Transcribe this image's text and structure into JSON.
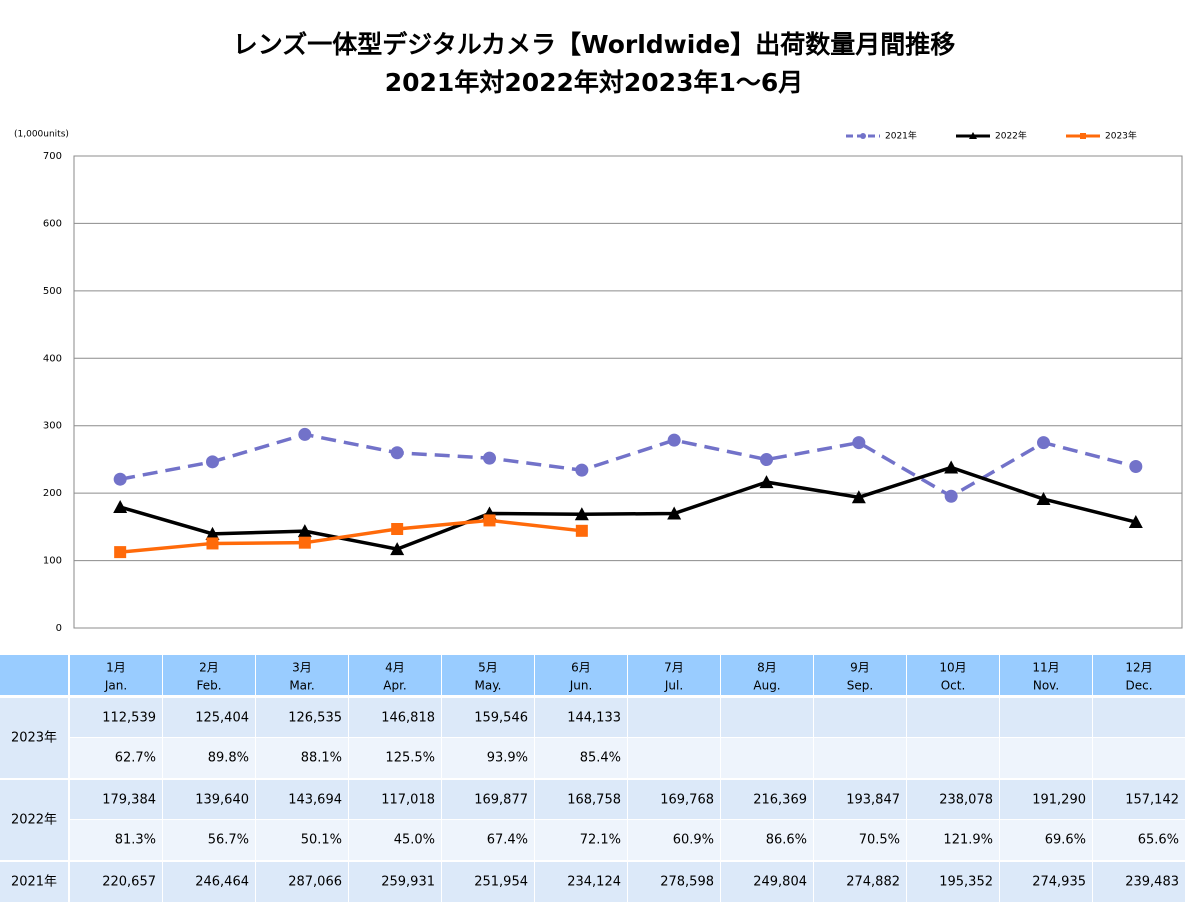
{
  "chart_data": {
    "type": "line",
    "title": [
      "レンズ一体型デジタルカメラ【Worldwide】出荷数量月間推移",
      "2021年対2022年対2023年1～6月"
    ],
    "y_unit": "(1,000units)",
    "ylim": [
      0,
      700
    ],
    "yticks": [
      0,
      100,
      200,
      300,
      400,
      500,
      600,
      700
    ],
    "grid": true,
    "legend": "top-right",
    "series": [
      {
        "name": "2021年",
        "color": "#7272c9",
        "dashed": true,
        "marker": "circle",
        "values": [
          220.657,
          246.464,
          287.066,
          259.931,
          251.954,
          234.124,
          278.598,
          249.804,
          274.882,
          195.352,
          274.935,
          239.483
        ]
      },
      {
        "name": "2022年",
        "color": "#000000",
        "dashed": false,
        "marker": "triangle",
        "values": [
          179.384,
          139.64,
          143.694,
          117.018,
          169.877,
          168.758,
          169.768,
          216.369,
          193.847,
          238.078,
          191.29,
          157.142
        ]
      },
      {
        "name": "2023年",
        "color": "#ff6a0a",
        "dashed": false,
        "marker": "square",
        "values": [
          112.539,
          125.404,
          126.535,
          146.818,
          159.546,
          144.133,
          null,
          null,
          null,
          null,
          null,
          null
        ]
      }
    ]
  },
  "table": {
    "months": [
      [
        "1月",
        "Jan."
      ],
      [
        "2月",
        "Feb."
      ],
      [
        "3月",
        "Mar."
      ],
      [
        "4月",
        "Apr."
      ],
      [
        "5月",
        "May."
      ],
      [
        "6月",
        "Jun."
      ],
      [
        "7月",
        "Jul."
      ],
      [
        "8月",
        "Aug."
      ],
      [
        "9月",
        "Sep."
      ],
      [
        "10月",
        "Oct."
      ],
      [
        "11月",
        "Nov."
      ],
      [
        "12月",
        "Dec."
      ]
    ],
    "rows": [
      {
        "label": "2023年",
        "values": [
          "112,539",
          "125,404",
          "126,535",
          "146,818",
          "159,546",
          "144,133"
        ],
        "ratios": [
          "62.7%",
          "89.8%",
          "88.1%",
          "125.5%",
          "93.9%",
          "85.4%"
        ]
      },
      {
        "label": "2022年",
        "values": [
          "179,384",
          "139,640",
          "143,694",
          "117,018",
          "169,877",
          "168,758",
          "169,768",
          "216,369",
          "193,847",
          "238,078",
          "191,290",
          "157,142"
        ],
        "ratios": [
          "81.3%",
          "56.7%",
          "50.1%",
          "45.0%",
          "67.4%",
          "72.1%",
          "60.9%",
          "86.6%",
          "70.5%",
          "121.9%",
          "69.6%",
          "65.6%"
        ]
      },
      {
        "label": "2021年",
        "values": [
          "220,657",
          "246,464",
          "287,066",
          "259,931",
          "251,954",
          "234,124",
          "278,598",
          "249,804",
          "274,882",
          "195,352",
          "274,935",
          "239,483"
        ]
      }
    ]
  }
}
